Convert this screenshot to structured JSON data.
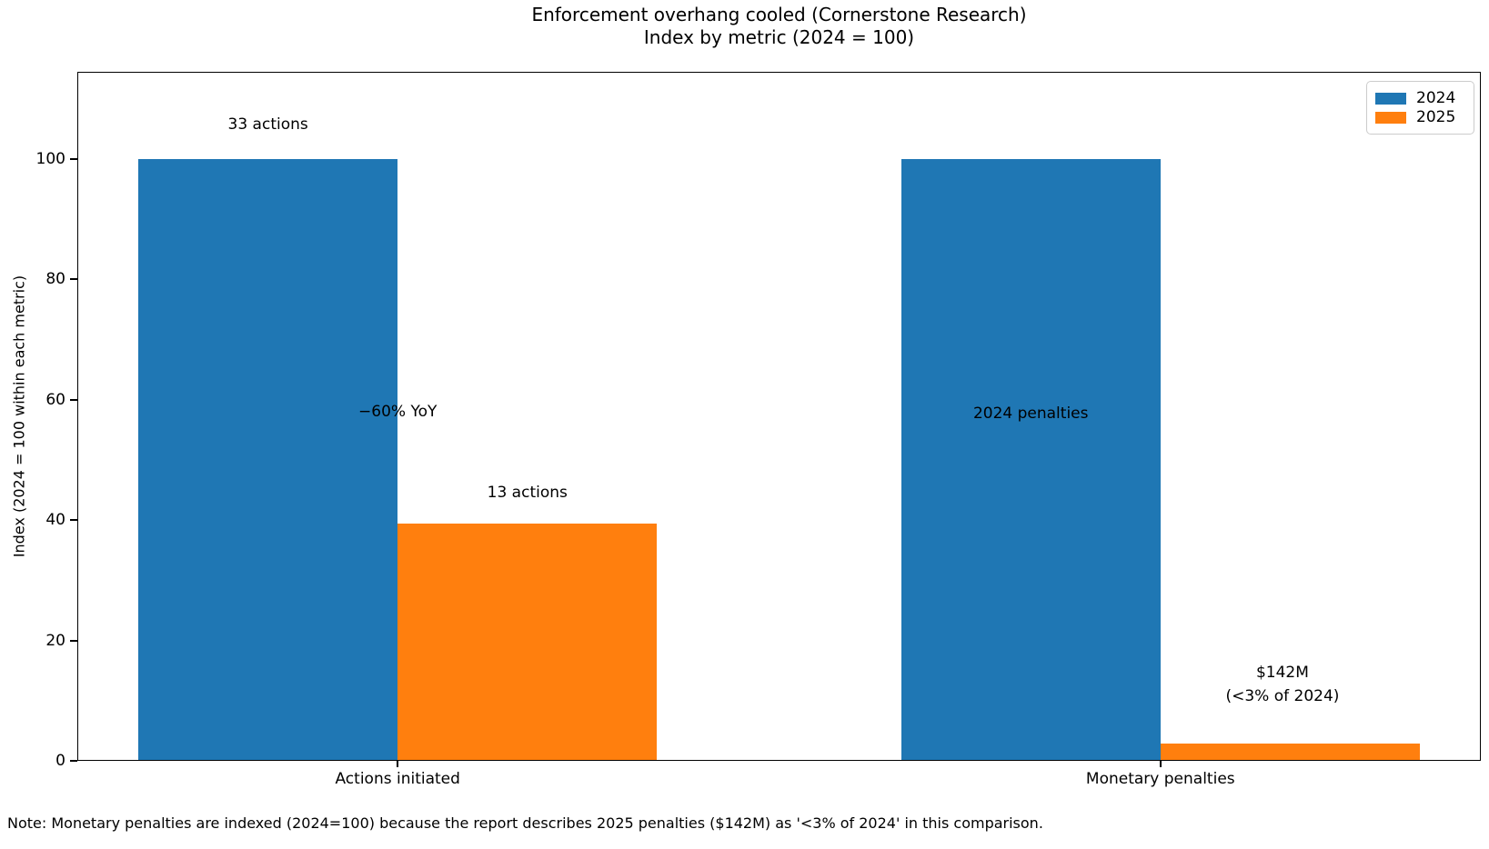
{
  "chart": {
    "title_line1": "Enforcement overhang cooled (Cornerstone Research)",
    "title_line2": "Index by metric (2024 = 100)",
    "ylabel": "Index (2024 = 100 within each metric)",
    "note": "Note: Monetary penalties are indexed (2024=100) because the report describes 2025 penalties ($142M) as '<3% of 2024' in this comparison."
  },
  "chart_data": {
    "type": "bar",
    "title": "Enforcement overhang cooled (Cornerstone Research) — Index by metric (2024 = 100)",
    "categories": [
      "Actions initiated",
      "Monetary penalties"
    ],
    "series": [
      {
        "name": "2024",
        "color": "#1f77b4",
        "values": [
          100,
          100
        ]
      },
      {
        "name": "2025",
        "color": "#ff7f0e",
        "values": [
          39.4,
          2.8
        ]
      }
    ],
    "xlabel": "",
    "ylabel": "Index (2024 = 100 within each metric)",
    "yticks": [
      0,
      20,
      40,
      60,
      80,
      100
    ],
    "ylim": [
      0,
      114.5
    ],
    "xlim": [
      -0.42,
      1.42
    ],
    "bar_width": 0.34,
    "bar_offset": 0.17,
    "grid": false,
    "legend_position": "upper right",
    "annotations": [
      {
        "text": "33 actions",
        "x": -0.17,
        "y": 105.8
      },
      {
        "text": "−60% YoY",
        "x": 0.0,
        "y": 58.0
      },
      {
        "text": "13 actions",
        "x": 0.17,
        "y": 44.6
      },
      {
        "text": "2024 penalties",
        "x": 0.83,
        "y": 57.7
      },
      {
        "text": "$142M\n(<3% of 2024)",
        "x": 1.16,
        "y": 12.7
      }
    ]
  }
}
